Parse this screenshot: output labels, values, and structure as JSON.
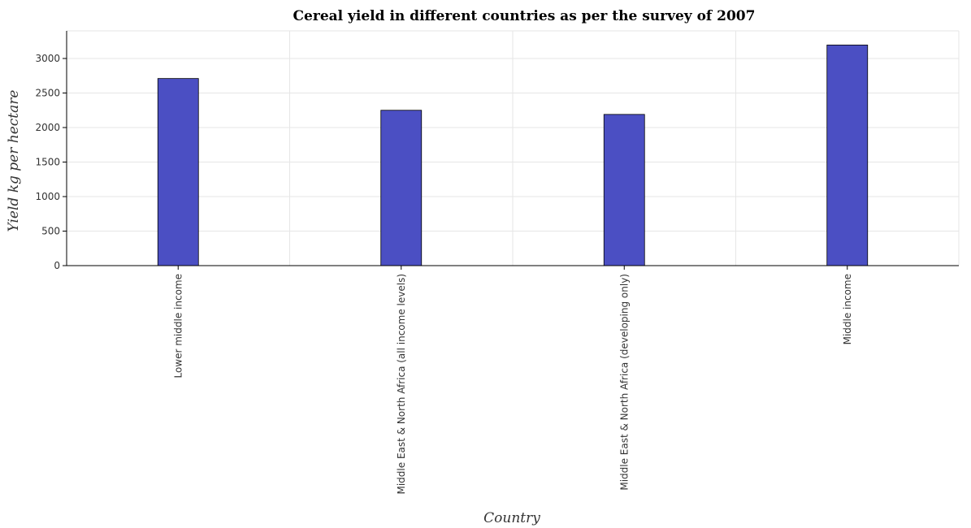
{
  "chart_data": {
    "type": "bar",
    "title": "Cereal yield in different countries as per the survey of 2007",
    "xlabel": "Country",
    "ylabel": "Yield kg per hectare",
    "categories": [
      "Lower middle income",
      "Middle East & North Africa (all income levels)",
      "Middle East & North Africa (developing only)",
      "Middle income"
    ],
    "values": [
      2710,
      2250,
      2190,
      3195
    ],
    "ylim": [
      0,
      3400
    ],
    "yticks": [
      0,
      500,
      1000,
      1500,
      2000,
      2500,
      3000
    ],
    "grid": true,
    "bar_color": "#4b4fc3"
  }
}
